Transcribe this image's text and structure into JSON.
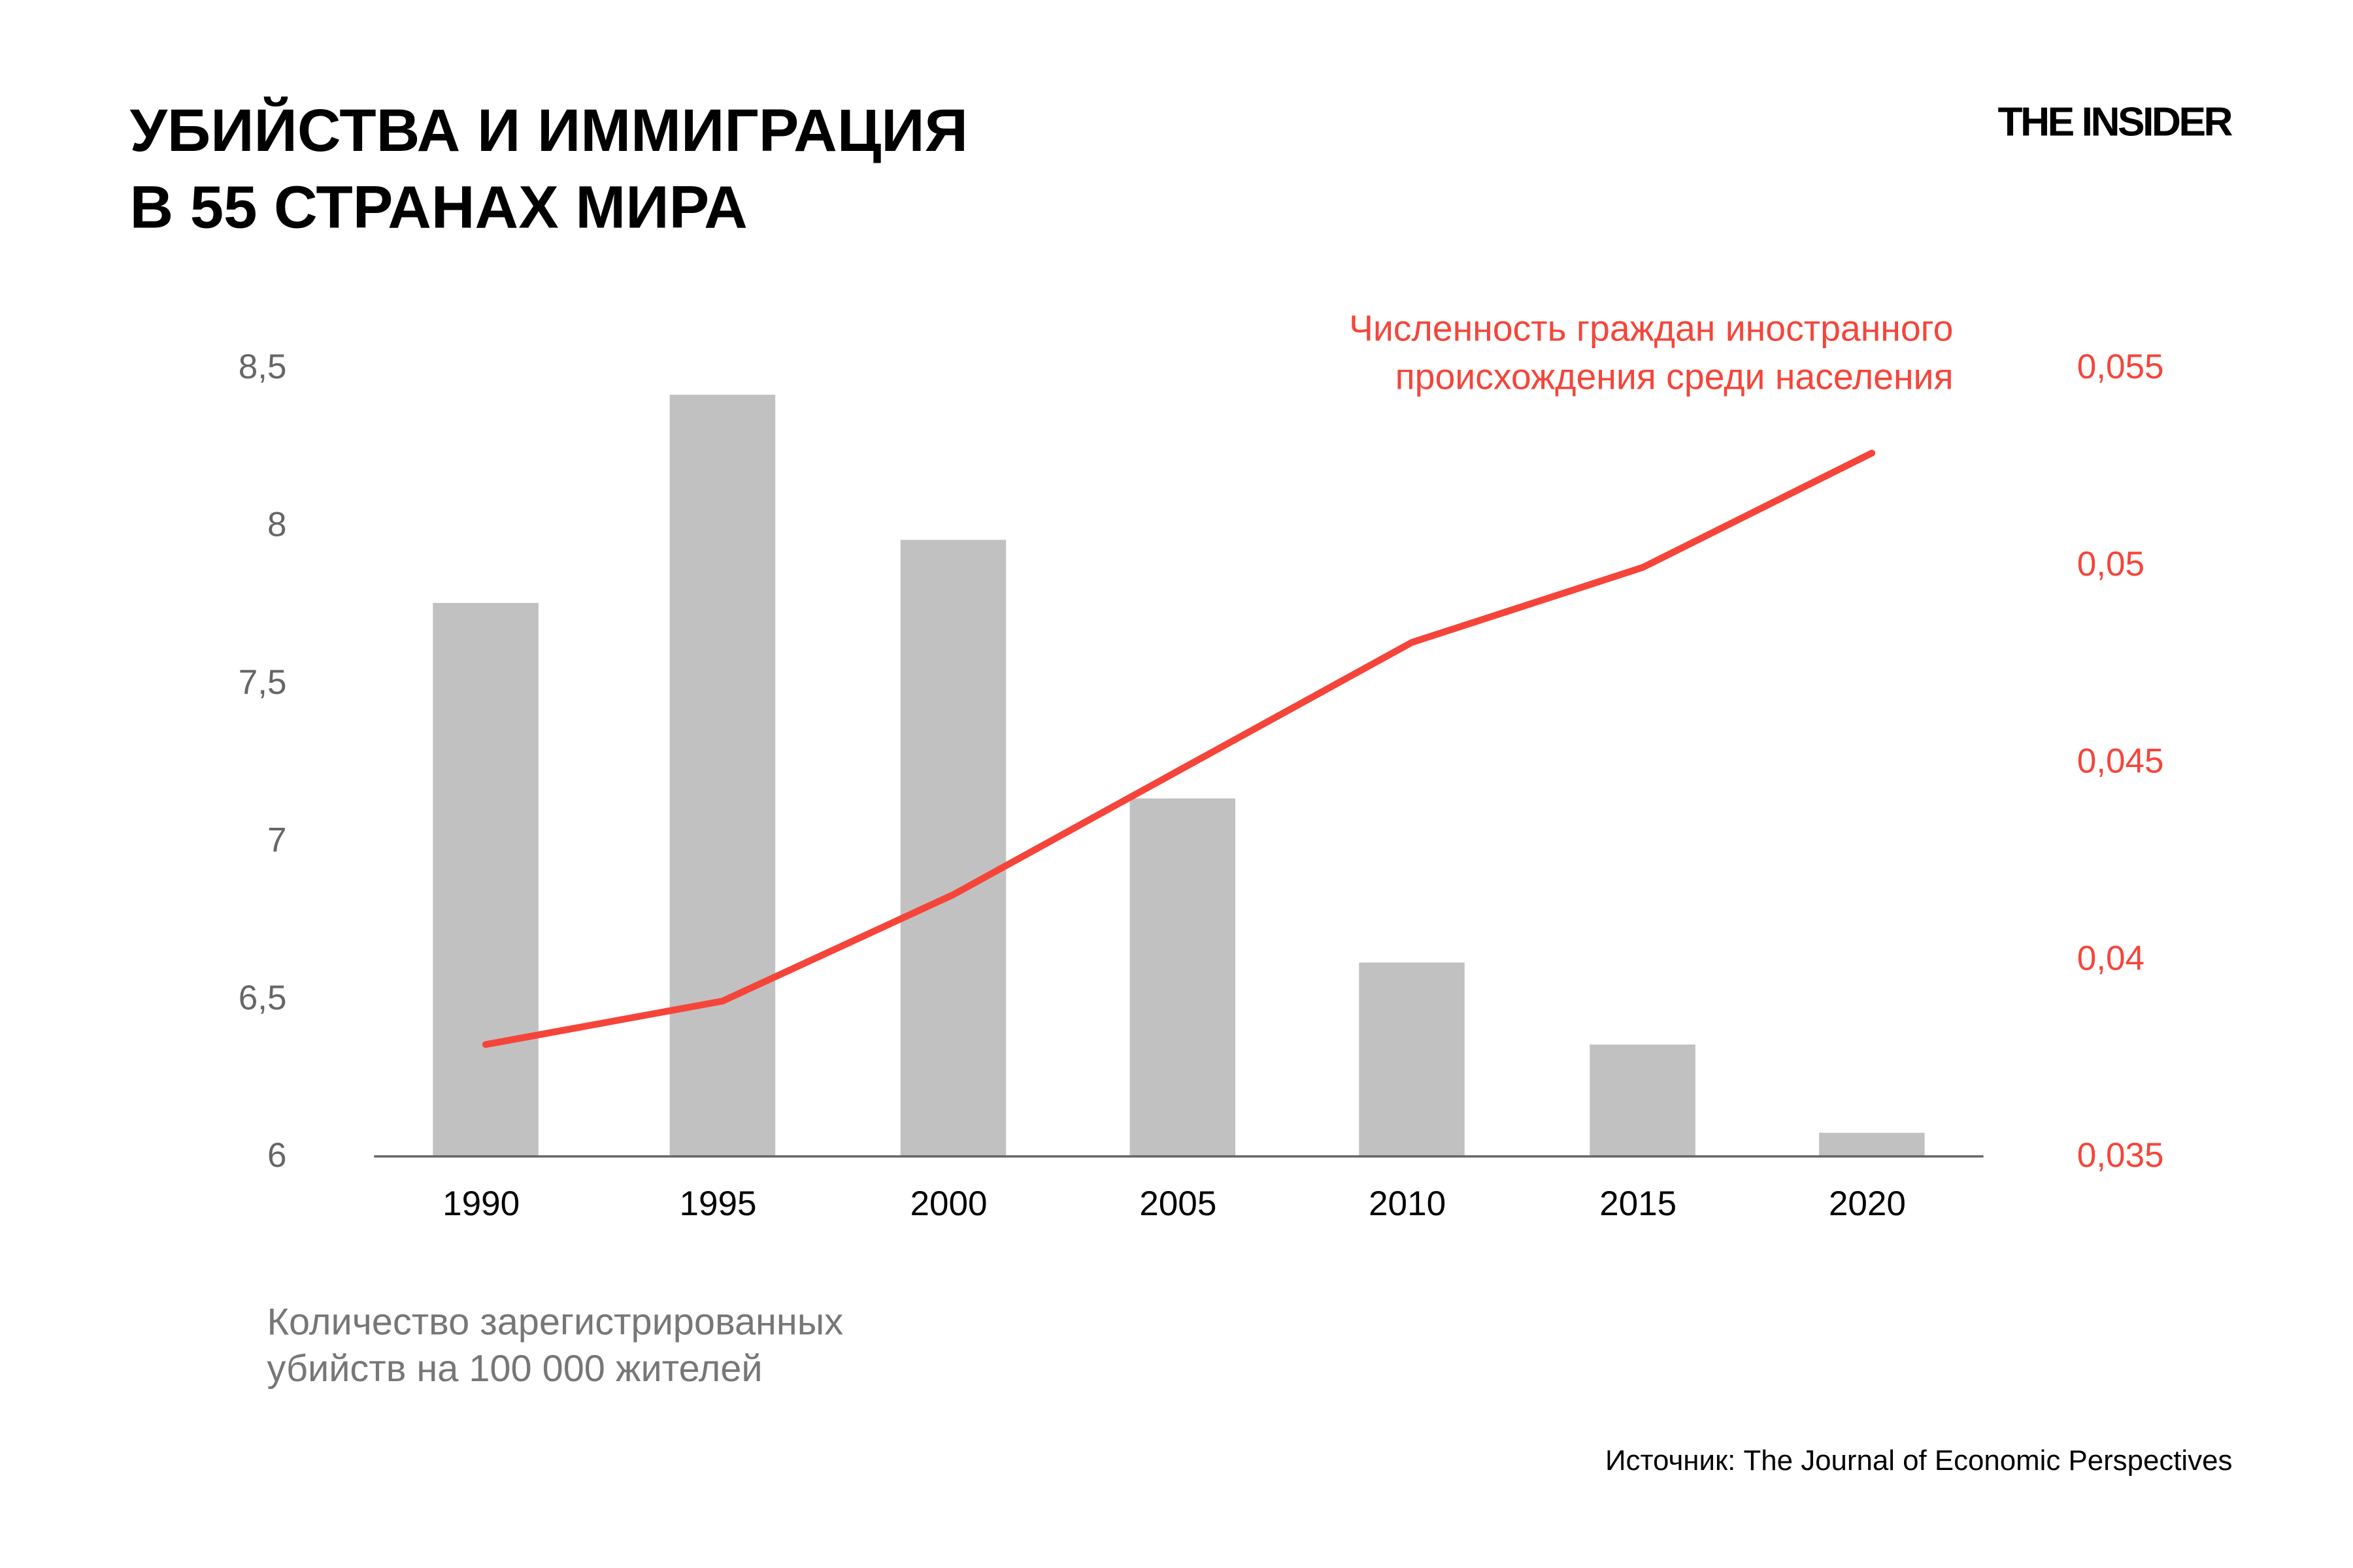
{
  "title_lines": [
    "УБИЙСТВА И ИММИГРАЦИЯ",
    "В 55 СТРАНАХ МИРА"
  ],
  "logo": "THE INSIDER",
  "source": "Источник: The Journal of Economic Perspectives",
  "chart_data": {
    "type": "bar+line",
    "categories": [
      "1990",
      "1995",
      "2000",
      "2005",
      "2010",
      "2015",
      "2020"
    ],
    "series": [
      {
        "name": "Количество зарегистрированных убийств на 100 000 жителей",
        "label_lines": [
          "Количество зарегистрированных",
          "убийств на 100 000 жителей"
        ],
        "type": "bar",
        "axis": "left",
        "color": "#c1c1c1",
        "values": [
          7.75,
          8.41,
          7.95,
          7.13,
          6.61,
          6.35,
          6.07
        ]
      },
      {
        "name": "Численность граждан иностранного происхождения среди населения",
        "label_lines": [
          "Численность граждан иностранного",
          "происхождения среди населения"
        ],
        "type": "line",
        "axis": "right",
        "color": "#f5453a",
        "values": [
          0.0378,
          0.0389,
          0.0416,
          0.0448,
          0.048,
          0.0499,
          0.0528
        ]
      }
    ],
    "left_axis": {
      "ylim": [
        6,
        8.5
      ],
      "ticks": [
        "6",
        "6,5",
        "7",
        "7,5",
        "8",
        "8,5"
      ],
      "tick_values": [
        6,
        6.5,
        7,
        7.5,
        8,
        8.5
      ]
    },
    "right_axis": {
      "ylim": [
        0.035,
        0.055
      ],
      "ticks": [
        "0,035",
        "0,04",
        "0,045",
        "0,05",
        "0,055"
      ],
      "tick_values": [
        0.035,
        0.04,
        0.045,
        0.05,
        0.055
      ]
    },
    "grid": false,
    "legend": "none"
  }
}
